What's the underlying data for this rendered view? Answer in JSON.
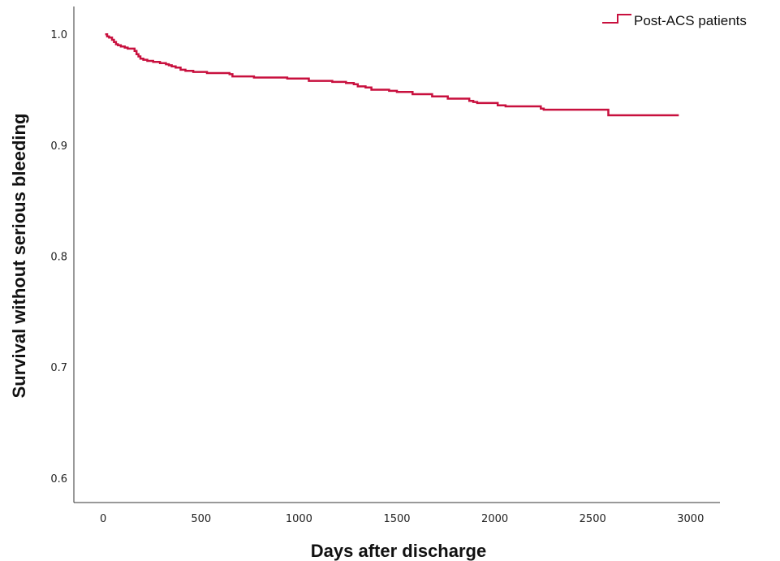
{
  "chart_data": {
    "type": "line",
    "subtype": "kaplan-meier-step",
    "xlabel": "Days after discharge",
    "ylabel": "Survival without serious bleeding",
    "xlim": [
      -150,
      3150
    ],
    "ylim": [
      0.578,
      1.025
    ],
    "x_ticks": [
      0,
      500,
      1000,
      1500,
      2000,
      2500,
      3000
    ],
    "x_tick_labels": [
      "0",
      "500",
      "1000",
      "1500",
      "2000",
      "2500",
      "3000"
    ],
    "y_ticks": [
      0.6,
      0.7,
      0.8,
      0.9,
      1.0
    ],
    "y_tick_labels": [
      "0.6",
      "0.7",
      "0.8",
      "0.9",
      "1.0"
    ],
    "grid": false,
    "legend_position": "top-right",
    "series": [
      {
        "name": "Post-ACS patients",
        "color": "#C8103E",
        "points": [
          [
            10,
            1.0
          ],
          [
            20,
            0.998
          ],
          [
            30,
            0.997
          ],
          [
            45,
            0.995
          ],
          [
            55,
            0.993
          ],
          [
            65,
            0.991
          ],
          [
            75,
            0.99
          ],
          [
            90,
            0.989
          ],
          [
            110,
            0.988
          ],
          [
            125,
            0.987
          ],
          [
            150,
            0.987
          ],
          [
            160,
            0.985
          ],
          [
            170,
            0.982
          ],
          [
            180,
            0.98
          ],
          [
            190,
            0.978
          ],
          [
            205,
            0.977
          ],
          [
            225,
            0.976
          ],
          [
            255,
            0.975
          ],
          [
            290,
            0.974
          ],
          [
            320,
            0.973
          ],
          [
            335,
            0.972
          ],
          [
            350,
            0.971
          ],
          [
            370,
            0.97
          ],
          [
            395,
            0.968
          ],
          [
            420,
            0.967
          ],
          [
            460,
            0.966
          ],
          [
            500,
            0.966
          ],
          [
            530,
            0.965
          ],
          [
            600,
            0.965
          ],
          [
            645,
            0.964
          ],
          [
            660,
            0.962
          ],
          [
            760,
            0.962
          ],
          [
            770,
            0.961
          ],
          [
            900,
            0.961
          ],
          [
            940,
            0.96
          ],
          [
            1035,
            0.96
          ],
          [
            1050,
            0.958
          ],
          [
            1130,
            0.958
          ],
          [
            1170,
            0.957
          ],
          [
            1200,
            0.957
          ],
          [
            1240,
            0.956
          ],
          [
            1280,
            0.955
          ],
          [
            1300,
            0.953
          ],
          [
            1340,
            0.952
          ],
          [
            1370,
            0.95
          ],
          [
            1430,
            0.95
          ],
          [
            1460,
            0.949
          ],
          [
            1500,
            0.948
          ],
          [
            1560,
            0.948
          ],
          [
            1580,
            0.946
          ],
          [
            1660,
            0.946
          ],
          [
            1680,
            0.944
          ],
          [
            1740,
            0.944
          ],
          [
            1760,
            0.942
          ],
          [
            1840,
            0.942
          ],
          [
            1870,
            0.94
          ],
          [
            1890,
            0.939
          ],
          [
            1910,
            0.938
          ],
          [
            2000,
            0.938
          ],
          [
            2015,
            0.936
          ],
          [
            2040,
            0.936
          ],
          [
            2055,
            0.935
          ],
          [
            2220,
            0.935
          ],
          [
            2235,
            0.933
          ],
          [
            2250,
            0.932
          ],
          [
            2470,
            0.932
          ],
          [
            2580,
            0.932
          ],
          [
            2580,
            0.927
          ],
          [
            2940,
            0.927
          ]
        ]
      }
    ]
  }
}
